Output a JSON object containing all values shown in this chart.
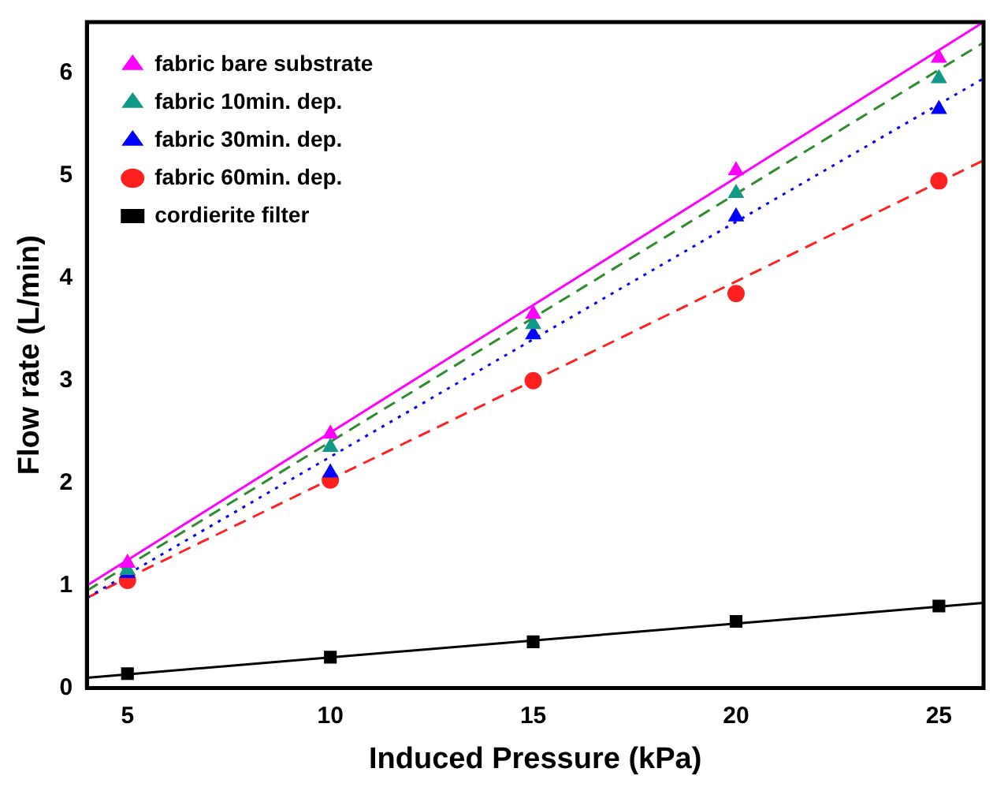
{
  "chart_data": {
    "type": "scatter",
    "xlabel": "Induced Pressure (kPa)",
    "ylabel": "Flow rate (L/min)",
    "xlim": [
      4,
      26.1
    ],
    "ylim": [
      0,
      6.5
    ],
    "xticks": [
      5,
      10,
      15,
      20,
      25
    ],
    "yticks": [
      0,
      1,
      2,
      3,
      4,
      5,
      6
    ],
    "grid": false,
    "legend": "top left",
    "series": [
      {
        "name": "fabric bare substrate",
        "marker": "triangle",
        "color": "#ff00ff",
        "x": [
          5,
          10,
          15,
          20,
          25
        ],
        "values": [
          1.22,
          2.48,
          3.65,
          5.05,
          6.15
        ]
      },
      {
        "name": "fabric 10min. dep.",
        "marker": "triangle",
        "color": "#119988",
        "x": [
          5,
          10,
          15,
          20,
          25
        ],
        "values": [
          1.15,
          2.35,
          3.55,
          4.83,
          5.95
        ]
      },
      {
        "name": "fabric 30min. dep.",
        "marker": "triangle",
        "color": "#0000ff",
        "x": [
          5,
          10,
          15,
          20,
          25
        ],
        "values": [
          1.12,
          2.1,
          3.45,
          4.6,
          5.65
        ]
      },
      {
        "name": "fabric 60min. dep.",
        "marker": "circle",
        "color": "#ff2020",
        "x": [
          5,
          10,
          15,
          20,
          25
        ],
        "values": [
          1.05,
          2.03,
          3.0,
          3.85,
          4.95
        ]
      },
      {
        "name": "cordierite filter",
        "marker": "square",
        "color": "#000000",
        "x": [
          5,
          10,
          15,
          20,
          25
        ],
        "values": [
          0.14,
          0.3,
          0.45,
          0.65,
          0.8
        ]
      },
      {
        "type": "line",
        "marker": "none",
        "line_style": "solid",
        "color": "#ff00ff",
        "x": [
          4,
          26.1
        ],
        "values": [
          1.0,
          6.5
        ]
      },
      {
        "type": "line",
        "marker": "none",
        "line_style": "dashed",
        "color": "#2e8b2e",
        "x": [
          4,
          26.1
        ],
        "values": [
          0.95,
          6.3
        ]
      },
      {
        "type": "line",
        "marker": "none",
        "line_style": "dotted",
        "color": "#0000ff",
        "x": [
          4,
          26.1
        ],
        "values": [
          0.88,
          5.95
        ]
      },
      {
        "type": "line",
        "marker": "none",
        "line_style": "dashed",
        "color": "#ff2020",
        "x": [
          4,
          15,
          26.1
        ],
        "values": [
          0.88,
          3.0,
          5.15
        ]
      },
      {
        "type": "line",
        "marker": "none",
        "line_style": "solid",
        "color": "#000000",
        "x": [
          4,
          26.1
        ],
        "values": [
          0.1,
          0.83
        ]
      }
    ]
  }
}
